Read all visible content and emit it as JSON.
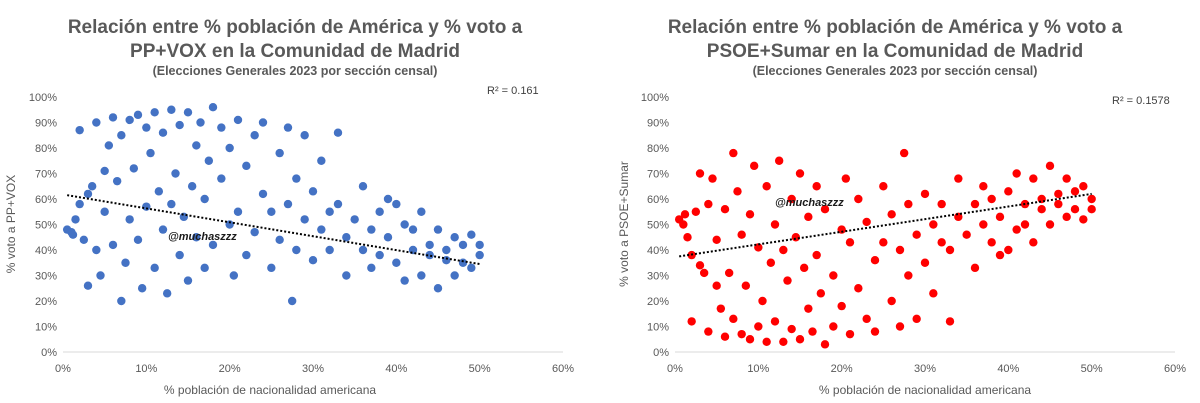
{
  "chart_data": [
    {
      "type": "scatter",
      "title_line1": "Relación entre % población de América y % voto a",
      "title_line2": "PP+VOX en la Comunidad de Madrid",
      "subtitle": "(Elecciones Generales 2023 por sección censal)",
      "xlabel": "% población de nacionalidad americana",
      "ylabel": "% voto a PP+VOX",
      "r2_label": "R² = 0.161",
      "watermark": "@muchaszzz",
      "color": "#4472C4",
      "xlim": [
        0,
        60
      ],
      "ylim": [
        0,
        100
      ],
      "x_ticks": [
        "0%",
        "10%",
        "20%",
        "30%",
        "40%",
        "50%",
        "60%"
      ],
      "y_ticks": [
        "0%",
        "10%",
        "20%",
        "30%",
        "40%",
        "50%",
        "60%",
        "70%",
        "80%",
        "90%",
        "100%"
      ],
      "grid": false,
      "trendline": {
        "x": [
          0.5,
          50
        ],
        "y": [
          61.5,
          34.5
        ]
      },
      "points": [
        [
          0.5,
          48
        ],
        [
          1,
          47
        ],
        [
          1.2,
          46
        ],
        [
          1.5,
          52
        ],
        [
          2,
          58
        ],
        [
          2,
          87
        ],
        [
          2.5,
          44
        ],
        [
          3,
          26
        ],
        [
          3,
          62
        ],
        [
          3.5,
          65
        ],
        [
          4,
          40
        ],
        [
          4,
          90
        ],
        [
          4.5,
          30
        ],
        [
          5,
          71
        ],
        [
          5,
          55
        ],
        [
          5.5,
          81
        ],
        [
          6,
          42
        ],
        [
          6,
          92
        ],
        [
          6.5,
          67
        ],
        [
          7,
          20
        ],
        [
          7,
          85
        ],
        [
          7.5,
          35
        ],
        [
          8,
          91
        ],
        [
          8,
          52
        ],
        [
          8.5,
          72
        ],
        [
          9,
          93
        ],
        [
          9,
          44
        ],
        [
          9.5,
          25
        ],
        [
          10,
          88
        ],
        [
          10,
          57
        ],
        [
          10.5,
          78
        ],
        [
          11,
          33
        ],
        [
          11,
          94
        ],
        [
          11.5,
          63
        ],
        [
          12,
          48
        ],
        [
          12,
          86
        ],
        [
          12.5,
          23
        ],
        [
          13,
          95
        ],
        [
          13,
          58
        ],
        [
          13.5,
          70
        ],
        [
          14,
          38
        ],
        [
          14,
          89
        ],
        [
          14.5,
          53
        ],
        [
          15,
          94
        ],
        [
          15,
          28
        ],
        [
          15.5,
          65
        ],
        [
          16,
          81
        ],
        [
          16,
          45
        ],
        [
          16.5,
          90
        ],
        [
          17,
          33
        ],
        [
          17,
          60
        ],
        [
          17.5,
          75
        ],
        [
          18,
          96
        ],
        [
          18,
          42
        ],
        [
          19,
          68
        ],
        [
          19,
          88
        ],
        [
          20,
          50
        ],
        [
          20,
          80
        ],
        [
          20.5,
          30
        ],
        [
          21,
          91
        ],
        [
          21,
          55
        ],
        [
          22,
          73
        ],
        [
          22,
          38
        ],
        [
          23,
          85
        ],
        [
          23,
          47
        ],
        [
          24,
          62
        ],
        [
          24,
          90
        ],
        [
          25,
          33
        ],
        [
          25,
          55
        ],
        [
          26,
          78
        ],
        [
          26,
          44
        ],
        [
          27,
          88
        ],
        [
          27,
          58
        ],
        [
          27.5,
          20
        ],
        [
          28,
          68
        ],
        [
          28,
          40
        ],
        [
          29,
          52
        ],
        [
          29,
          85
        ],
        [
          30,
          36
        ],
        [
          30,
          63
        ],
        [
          31,
          75
        ],
        [
          31,
          48
        ],
        [
          32,
          55
        ],
        [
          32,
          40
        ],
        [
          33,
          86
        ],
        [
          33,
          58
        ],
        [
          34,
          45
        ],
        [
          34,
          30
        ],
        [
          35,
          52
        ],
        [
          36,
          40
        ],
        [
          36,
          65
        ],
        [
          37,
          48
        ],
        [
          37,
          33
        ],
        [
          38,
          55
        ],
        [
          38,
          38
        ],
        [
          39,
          60
        ],
        [
          39,
          45
        ],
        [
          40,
          35
        ],
        [
          40,
          58
        ],
        [
          41,
          50
        ],
        [
          41,
          28
        ],
        [
          42,
          40
        ],
        [
          42,
          48
        ],
        [
          43,
          55
        ],
        [
          43,
          30
        ],
        [
          44,
          42
        ],
        [
          44,
          38
        ],
        [
          45,
          48
        ],
        [
          45,
          25
        ],
        [
          46,
          40
        ],
        [
          46,
          36
        ],
        [
          47,
          45
        ],
        [
          47,
          30
        ],
        [
          48,
          42
        ],
        [
          48,
          35
        ],
        [
          49,
          46
        ],
        [
          49,
          33
        ],
        [
          50,
          38
        ],
        [
          50,
          42
        ]
      ]
    },
    {
      "type": "scatter",
      "title_line1": "Relación entre % población de América y % voto a",
      "title_line2": "PSOE+Sumar en la Comunidad de Madrid",
      "subtitle": "(Elecciones Generales 2023 por sección censal)",
      "xlabel": "% población de nacionalidad americana",
      "ylabel": "% voto a PSOE+Sumar",
      "r2_label": "R² = 0.1578",
      "watermark": "@muchaszzz",
      "color": "#FF0000",
      "xlim": [
        0,
        60
      ],
      "ylim": [
        0,
        100
      ],
      "x_ticks": [
        "0%",
        "10%",
        "20%",
        "30%",
        "40%",
        "50%",
        "60%"
      ],
      "y_ticks": [
        "0%",
        "10%",
        "20%",
        "30%",
        "40%",
        "50%",
        "60%",
        "70%",
        "80%",
        "90%",
        "100%"
      ],
      "grid": false,
      "trendline": {
        "x": [
          0.5,
          50
        ],
        "y": [
          37.5,
          62
        ]
      },
      "points": [
        [
          0.5,
          52
        ],
        [
          1,
          50
        ],
        [
          1.2,
          54
        ],
        [
          1.5,
          45
        ],
        [
          2,
          38
        ],
        [
          2,
          12
        ],
        [
          2.5,
          55
        ],
        [
          3,
          70
        ],
        [
          3,
          34
        ],
        [
          3.5,
          31
        ],
        [
          4,
          58
        ],
        [
          4,
          8
        ],
        [
          4.5,
          68
        ],
        [
          5,
          26
        ],
        [
          5,
          44
        ],
        [
          5.5,
          17
        ],
        [
          6,
          56
        ],
        [
          6,
          6
        ],
        [
          6.5,
          31
        ],
        [
          7,
          78
        ],
        [
          7,
          13
        ],
        [
          7.5,
          63
        ],
        [
          8,
          7
        ],
        [
          8,
          46
        ],
        [
          8.5,
          26
        ],
        [
          9,
          5
        ],
        [
          9,
          54
        ],
        [
          9.5,
          73
        ],
        [
          10,
          10
        ],
        [
          10,
          41
        ],
        [
          10.5,
          20
        ],
        [
          11,
          65
        ],
        [
          11,
          4
        ],
        [
          11.5,
          35
        ],
        [
          12,
          50
        ],
        [
          12,
          12
        ],
        [
          12.5,
          75
        ],
        [
          13,
          4
        ],
        [
          13,
          40
        ],
        [
          13.5,
          28
        ],
        [
          14,
          60
        ],
        [
          14,
          9
        ],
        [
          14.5,
          45
        ],
        [
          15,
          5
        ],
        [
          15,
          70
        ],
        [
          15.5,
          33
        ],
        [
          16,
          17
        ],
        [
          16,
          53
        ],
        [
          16.5,
          8
        ],
        [
          17,
          65
        ],
        [
          17,
          38
        ],
        [
          17.5,
          23
        ],
        [
          18,
          3
        ],
        [
          18,
          56
        ],
        [
          19,
          30
        ],
        [
          19,
          10
        ],
        [
          20,
          48
        ],
        [
          20,
          18
        ],
        [
          20.5,
          68
        ],
        [
          21,
          7
        ],
        [
          21,
          43
        ],
        [
          22,
          25
        ],
        [
          22,
          60
        ],
        [
          23,
          13
        ],
        [
          23,
          51
        ],
        [
          24,
          36
        ],
        [
          24,
          8
        ],
        [
          25,
          65
        ],
        [
          25,
          43
        ],
        [
          26,
          20
        ],
        [
          26,
          54
        ],
        [
          27,
          10
        ],
        [
          27,
          40
        ],
        [
          27.5,
          78
        ],
        [
          28,
          30
        ],
        [
          28,
          58
        ],
        [
          29,
          46
        ],
        [
          29,
          13
        ],
        [
          30,
          62
        ],
        [
          30,
          35
        ],
        [
          31,
          23
        ],
        [
          31,
          50
        ],
        [
          32,
          43
        ],
        [
          32,
          58
        ],
        [
          33,
          12
        ],
        [
          33,
          40
        ],
        [
          34,
          53
        ],
        [
          34,
          68
        ],
        [
          35,
          46
        ],
        [
          36,
          58
        ],
        [
          36,
          33
        ],
        [
          37,
          50
        ],
        [
          37,
          65
        ],
        [
          38,
          43
        ],
        [
          38,
          60
        ],
        [
          39,
          38
        ],
        [
          39,
          53
        ],
        [
          40,
          63
        ],
        [
          40,
          40
        ],
        [
          41,
          48
        ],
        [
          41,
          70
        ],
        [
          42,
          58
        ],
        [
          42,
          50
        ],
        [
          43,
          43
        ],
        [
          43,
          68
        ],
        [
          44,
          56
        ],
        [
          44,
          60
        ],
        [
          45,
          50
        ],
        [
          45,
          73
        ],
        [
          46,
          58
        ],
        [
          46,
          62
        ],
        [
          47,
          53
        ],
        [
          47,
          68
        ],
        [
          48,
          56
        ],
        [
          48,
          63
        ],
        [
          49,
          52
        ],
        [
          49,
          65
        ],
        [
          50,
          60
        ],
        [
          50,
          56
        ]
      ]
    }
  ]
}
